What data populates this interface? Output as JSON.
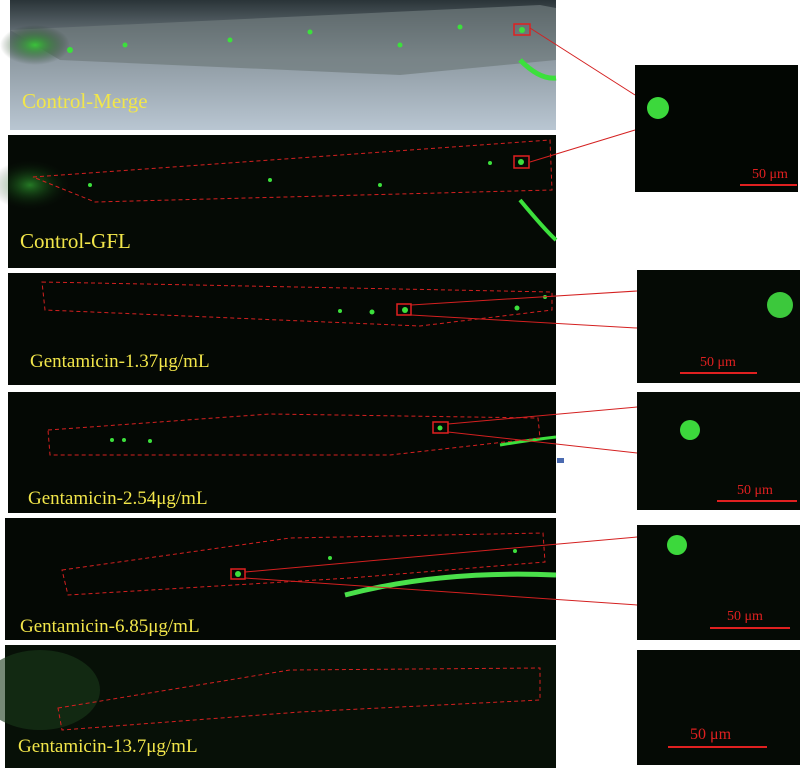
{
  "panels": [
    {
      "label": "Control-Merge"
    },
    {
      "label": "Control-GFL"
    },
    {
      "label": "Gentamicin-1.37μg/mL"
    },
    {
      "label": "Gentamicin-2.54μg/mL"
    },
    {
      "label": "Gentamicin-6.85μg/mL"
    },
    {
      "label": "Gentamicin-13.7μg/mL"
    }
  ],
  "insets": [
    {
      "scale_bar": "50 μm"
    },
    {
      "scale_bar": "50 μm"
    },
    {
      "scale_bar": "50 μm"
    },
    {
      "scale_bar": "50 μm"
    },
    {
      "scale_bar": "50 μm"
    }
  ]
}
